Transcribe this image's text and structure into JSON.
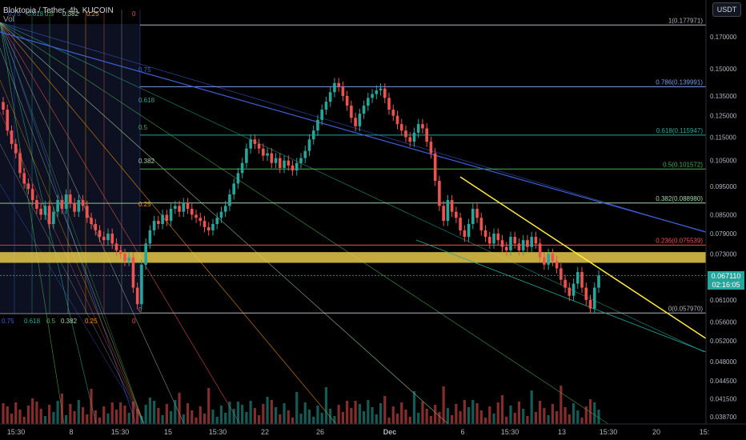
{
  "header": {
    "symbol": "Bloktopia / Tether, 4h, KUCOIN",
    "volume_label": "Vol"
  },
  "currency_button": "USDT",
  "last_price": {
    "value": "0.067110",
    "countdown": "02:16:05"
  },
  "colors": {
    "background": "#000000",
    "up": "#26a69a",
    "down": "#ef5350",
    "zone": "#e6c84a",
    "trendline": "#ffeb3b",
    "fib_blue_line": "#3f5fd6"
  },
  "chart_data": {
    "type": "candlestick",
    "y_axis": {
      "ticks": [
        "0.170000",
        "0.150000",
        "0.135000",
        "0.125000",
        "0.115000",
        "0.105000",
        "0.095000",
        "0.085000",
        "0.079000",
        "0.073000",
        "0.067000",
        "0.061000",
        "0.056000",
        "0.052000",
        "0.048000",
        "0.044500",
        "0.041500",
        "0.038700"
      ],
      "range": [
        0.038,
        0.182
      ],
      "scale": "log"
    },
    "x_axis": {
      "ticks": [
        "15:30",
        "8",
        "15:30",
        "15",
        "15:30",
        "22",
        "26",
        "Dec",
        "6",
        "15:30",
        "13",
        "15:30",
        "20",
        "15:"
      ]
    },
    "fib_retracement": [
      {
        "level": "1",
        "value": "0.177971",
        "color": "#b2b5be"
      },
      {
        "level": "0.786",
        "value": "0.139991",
        "color": "#7b9cf0"
      },
      {
        "level": "0.618",
        "value": "0.115947",
        "color": "#26a69a"
      },
      {
        "level": "0.5",
        "value": "0.101572",
        "color": "#4caf50"
      },
      {
        "level": "0.382",
        "value": "0.088980",
        "color": "#a5d6a7"
      },
      {
        "level": "0.236",
        "value": "0.075539",
        "color": "#ef5350"
      },
      {
        "level": "0",
        "value": "0.057970",
        "color": "#b2b5be"
      }
    ],
    "gann_box": {
      "top_labels": [
        "0.75",
        "0.618",
        "0.5",
        "0.382",
        "0.25",
        "0"
      ],
      "side_labels": [
        "0.75",
        "0.618",
        "0.5",
        "0.382",
        "0.25",
        "0"
      ],
      "bottom_labels": [
        "0.75",
        "0.618",
        "0.5",
        "0.382",
        "0.25",
        "0"
      ]
    },
    "support_zone": [
      0.0705,
      0.0735
    ],
    "candles_close": [
      0.128,
      0.118,
      0.112,
      0.108,
      0.1,
      0.096,
      0.094,
      0.09,
      0.087,
      0.085,
      0.088,
      0.082,
      0.086,
      0.09,
      0.087,
      0.092,
      0.089,
      0.086,
      0.09,
      0.088,
      0.084,
      0.082,
      0.08,
      0.078,
      0.077,
      0.079,
      0.076,
      0.074,
      0.073,
      0.071,
      0.072,
      0.064,
      0.06,
      0.07,
      0.076,
      0.08,
      0.083,
      0.082,
      0.085,
      0.083,
      0.087,
      0.088,
      0.086,
      0.089,
      0.087,
      0.085,
      0.084,
      0.083,
      0.081,
      0.08,
      0.082,
      0.084,
      0.086,
      0.088,
      0.092,
      0.096,
      0.1,
      0.104,
      0.11,
      0.114,
      0.112,
      0.11,
      0.107,
      0.108,
      0.104,
      0.106,
      0.102,
      0.105,
      0.103,
      0.101,
      0.104,
      0.106,
      0.109,
      0.114,
      0.118,
      0.123,
      0.128,
      0.132,
      0.137,
      0.142,
      0.14,
      0.135,
      0.13,
      0.124,
      0.12,
      0.126,
      0.13,
      0.134,
      0.136,
      0.138,
      0.139,
      0.134,
      0.128,
      0.125,
      0.121,
      0.118,
      0.115,
      0.113,
      0.117,
      0.121,
      0.119,
      0.113,
      0.108,
      0.097,
      0.088,
      0.083,
      0.09,
      0.086,
      0.084,
      0.08,
      0.078,
      0.082,
      0.087,
      0.084,
      0.08,
      0.078,
      0.076,
      0.079,
      0.077,
      0.075,
      0.074,
      0.078,
      0.076,
      0.074,
      0.077,
      0.075,
      0.078,
      0.076,
      0.072,
      0.07,
      0.073,
      0.071,
      0.069,
      0.066,
      0.064,
      0.062,
      0.065,
      0.068,
      0.064,
      0.061,
      0.059,
      0.064,
      0.0671
    ]
  }
}
